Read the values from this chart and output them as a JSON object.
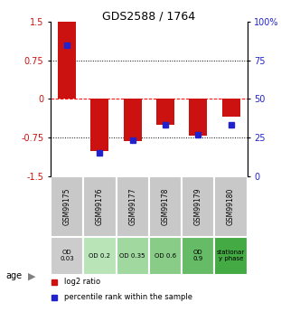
{
  "title": "GDS2588 / 1764",
  "samples": [
    "GSM99175",
    "GSM99176",
    "GSM99177",
    "GSM99178",
    "GSM99179",
    "GSM99180"
  ],
  "log2_ratio": [
    1.5,
    -1.02,
    -0.82,
    -0.5,
    -0.72,
    -0.35
  ],
  "percentile": [
    85,
    15,
    23,
    33,
    27,
    33
  ],
  "ylim": [
    -1.5,
    1.5
  ],
  "yticks_left": [
    -1.5,
    -0.75,
    0,
    0.75,
    1.5
  ],
  "yticks_right": [
    0,
    25,
    50,
    75,
    100
  ],
  "hlines": [
    -0.75,
    0.0,
    0.75
  ],
  "hline_styles": [
    "dotted",
    "dashed",
    "dotted"
  ],
  "hline_colors": [
    "black",
    "red",
    "black"
  ],
  "bar_color": "#cc1111",
  "dot_color": "#2222cc",
  "bar_width": 0.55,
  "age_labels": [
    "OD\n0.03",
    "OD 0.2",
    "OD 0.35",
    "OD 0.6",
    "OD\n0.9",
    "stationar\ny phase"
  ],
  "age_colors": [
    "#cccccc",
    "#b8e4b8",
    "#a0d8a0",
    "#88cc88",
    "#66bb66",
    "#44aa44"
  ],
  "sample_box_color": "#c8c8c8",
  "legend_items": [
    "log2 ratio",
    "percentile rank within the sample"
  ],
  "legend_colors": [
    "#cc1111",
    "#2222cc"
  ],
  "left_tick_color": "#cc1111",
  "right_tick_color": "#2222cc"
}
